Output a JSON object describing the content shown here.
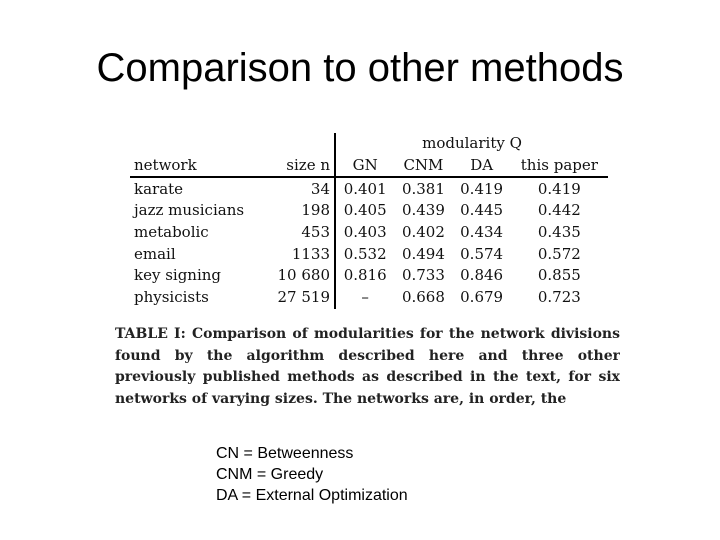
{
  "slide": {
    "title": "Comparison to other methods"
  },
  "table": {
    "group_header": "modularity Q",
    "columns": [
      "network",
      "size n",
      "GN",
      "CNM",
      "DA",
      "this paper"
    ],
    "rows": [
      [
        "karate",
        "34",
        "0.401",
        "0.381",
        "0.419",
        "0.419"
      ],
      [
        "jazz musicians",
        "198",
        "0.405",
        "0.439",
        "0.445",
        "0.442"
      ],
      [
        "metabolic",
        "453",
        "0.403",
        "0.402",
        "0.434",
        "0.435"
      ],
      [
        "email",
        "1133",
        "0.532",
        "0.494",
        "0.574",
        "0.572"
      ],
      [
        "key signing",
        "10 680",
        "0.816",
        "0.733",
        "0.846",
        "0.855"
      ],
      [
        "physicists",
        "27 519",
        "–",
        "0.668",
        "0.679",
        "0.723"
      ]
    ]
  },
  "caption": "TABLE I: Comparison of modularities for the network divisions found by the algorithm described here and three other previously published methods as described in the text, for six networks of varying sizes. The networks are, in order, the",
  "notes": [
    "CN = Betweenness",
    "CNM = Greedy",
    "DA = External Optimization"
  ]
}
